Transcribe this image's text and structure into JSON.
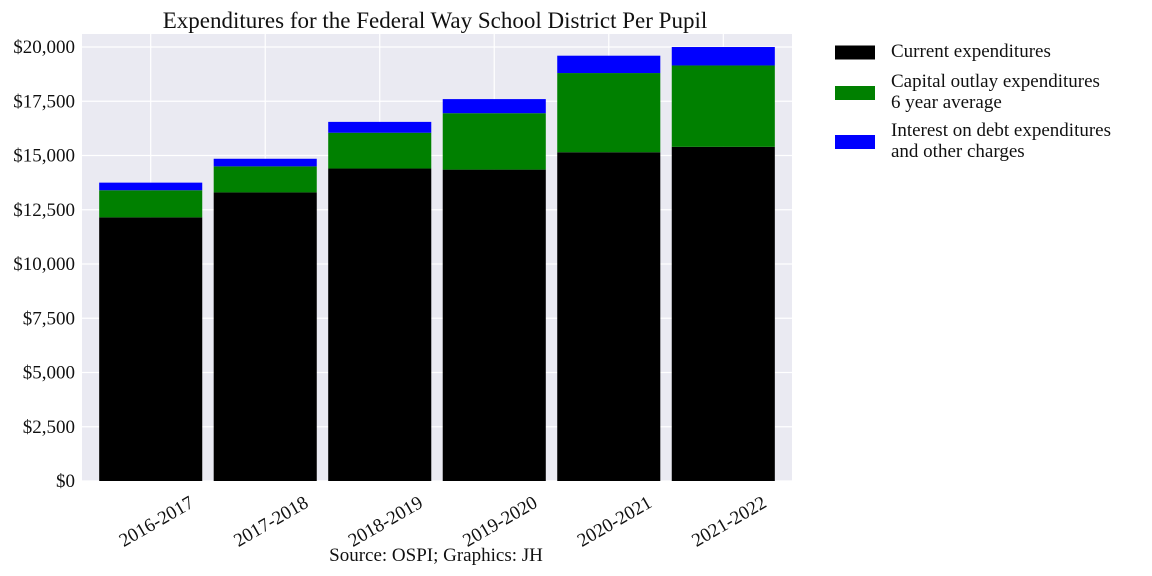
{
  "chart_data": {
    "type": "bar",
    "stacked": true,
    "title": "Expenditures for the Federal Way School District Per Pupil",
    "xlabel": "",
    "ylabel": "",
    "source_note": "Source: OSPI; Graphics: JH",
    "categories": [
      "2016-2017",
      "2017-2018",
      "2018-2019",
      "2019-2020",
      "2020-2021",
      "2021-2022"
    ],
    "series": [
      {
        "name": "Current expenditures",
        "color": "#000000",
        "values": [
          12150,
          13300,
          14400,
          14350,
          15150,
          15400
        ]
      },
      {
        "name": "Capital outlay expenditures\n6 year average",
        "color": "#008000",
        "values": [
          1250,
          1200,
          1650,
          2600,
          3650,
          3750
        ]
      },
      {
        "name": "Interest on debt expenditures\nand other charges",
        "color": "#0000ff",
        "values": [
          350,
          350,
          500,
          650,
          800,
          850
        ]
      }
    ],
    "ylim": [
      0,
      20600
    ],
    "yticks": [
      0,
      2500,
      5000,
      7500,
      10000,
      12500,
      15000,
      17500,
      20000
    ],
    "ytick_labels": [
      "$0",
      "$2,500",
      "$5,000",
      "$7,500",
      "$10,000",
      "$12,500",
      "$15,000",
      "$17,500",
      "$20,000"
    ],
    "grid": true,
    "legend_position": "outside right"
  }
}
